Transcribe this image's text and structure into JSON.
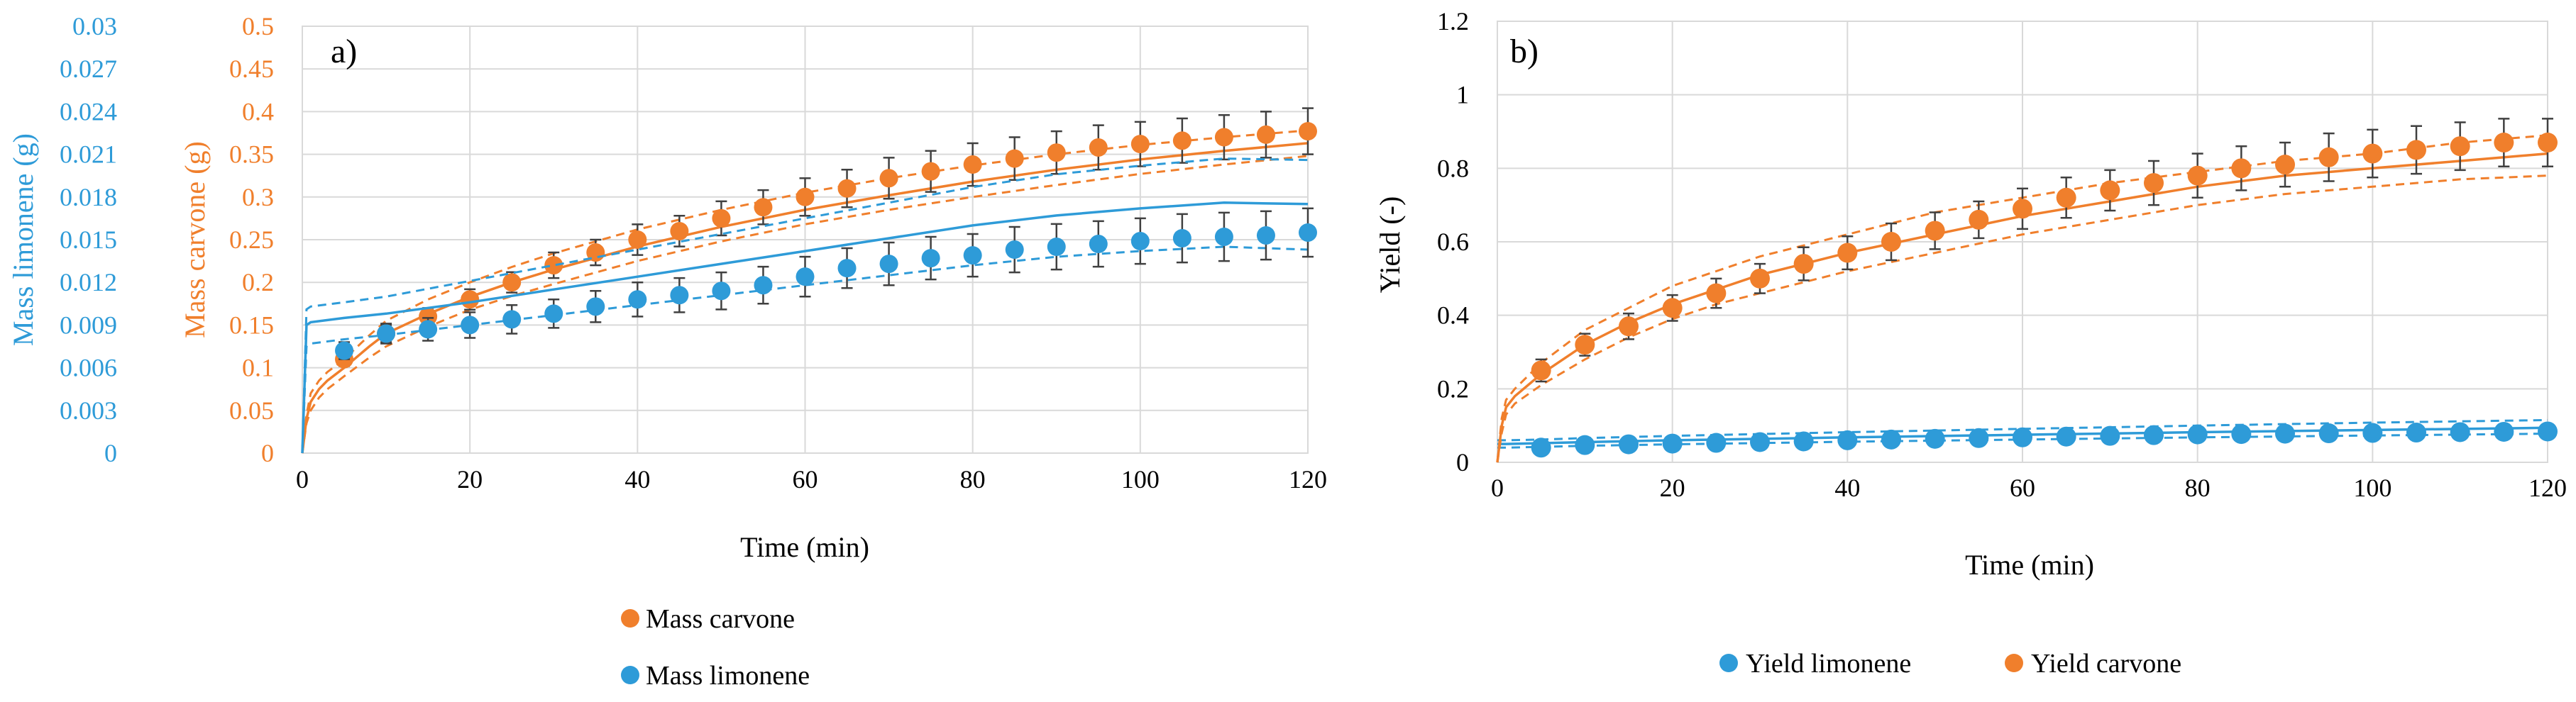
{
  "chart_data": [
    {
      "panel_label": "a)",
      "type": "scatter",
      "xlabel": "Time (min)",
      "xlim": [
        0,
        120
      ],
      "xticks": [
        "0",
        "20",
        "40",
        "60",
        "80",
        "100",
        "120"
      ],
      "grid": true,
      "legend_position": "bottom",
      "axes": {
        "carvone": {
          "label": "Mass carvone (g)",
          "ylim": [
            0,
            0.5
          ],
          "ticks": [
            "0",
            "0.05",
            "0.1",
            "0.15",
            "0.2",
            "0.25",
            "0.3",
            "0.35",
            "0.4",
            "0.45",
            "0.5"
          ],
          "color": "#F07F2C"
        },
        "limonene": {
          "label": "Mass limonene (g)",
          "ylim": [
            0,
            0.03
          ],
          "ticks": [
            "0",
            "0.003",
            "0.006",
            "0.009",
            "0.012",
            "0.015",
            "0.018",
            "0.021",
            "0.024",
            "0.027",
            "0.03"
          ],
          "color": "#2E9BD8"
        }
      },
      "series": [
        {
          "name": "Mass carvone",
          "axis": "carvone",
          "color": "#F07F2C",
          "x": [
            5,
            10,
            15,
            20,
            25,
            30,
            35,
            40,
            45,
            50,
            55,
            60,
            65,
            70,
            75,
            80,
            85,
            90,
            95,
            100,
            105,
            110,
            115,
            120
          ],
          "y": [
            0.11,
            0.14,
            0.16,
            0.18,
            0.2,
            0.22,
            0.235,
            0.25,
            0.26,
            0.275,
            0.288,
            0.3,
            0.31,
            0.322,
            0.33,
            0.338,
            0.345,
            0.352,
            0.358,
            0.362,
            0.366,
            0.37,
            0.373,
            0.377
          ],
          "err": [
            0.008,
            0.01,
            0.01,
            0.012,
            0.012,
            0.015,
            0.015,
            0.018,
            0.018,
            0.02,
            0.02,
            0.022,
            0.022,
            0.024,
            0.024,
            0.025,
            0.025,
            0.025,
            0.026,
            0.026,
            0.026,
            0.026,
            0.027,
            0.027
          ],
          "model_x": [
            0,
            0.5,
            1,
            2,
            3,
            5,
            8,
            10,
            15,
            20,
            25,
            30,
            40,
            50,
            60,
            70,
            80,
            90,
            100,
            110,
            120
          ],
          "model": [
            0,
            0.04,
            0.06,
            0.075,
            0.085,
            0.1,
            0.125,
            0.14,
            0.163,
            0.183,
            0.2,
            0.215,
            0.242,
            0.265,
            0.285,
            0.302,
            0.318,
            0.332,
            0.344,
            0.354,
            0.363
          ],
          "model_upper": [
            0,
            0.045,
            0.07,
            0.085,
            0.095,
            0.11,
            0.138,
            0.155,
            0.18,
            0.2,
            0.218,
            0.234,
            0.262,
            0.285,
            0.305,
            0.322,
            0.337,
            0.35,
            0.361,
            0.37,
            0.378
          ],
          "model_lower": [
            0,
            0.035,
            0.05,
            0.065,
            0.075,
            0.09,
            0.112,
            0.125,
            0.148,
            0.168,
            0.184,
            0.198,
            0.225,
            0.248,
            0.268,
            0.285,
            0.3,
            0.314,
            0.327,
            0.338,
            0.348
          ]
        },
        {
          "name": "Mass limonene",
          "axis": "limonene",
          "color": "#2E9BD8",
          "x": [
            5,
            10,
            15,
            20,
            25,
            30,
            35,
            40,
            45,
            50,
            55,
            60,
            65,
            70,
            75,
            80,
            85,
            90,
            95,
            100,
            105,
            110,
            115,
            120
          ],
          "y": [
            0.0072,
            0.0084,
            0.0087,
            0.009,
            0.0094,
            0.0098,
            0.0103,
            0.0108,
            0.0111,
            0.0114,
            0.0118,
            0.0124,
            0.013,
            0.0133,
            0.0137,
            0.0139,
            0.0143,
            0.0145,
            0.0147,
            0.0149,
            0.0151,
            0.0152,
            0.0153,
            0.0155
          ],
          "err": [
            0.0006,
            0.0007,
            0.0008,
            0.0009,
            0.001,
            0.001,
            0.0011,
            0.0012,
            0.0012,
            0.0013,
            0.0013,
            0.0014,
            0.0014,
            0.0015,
            0.0015,
            0.0015,
            0.0016,
            0.0016,
            0.0016,
            0.0016,
            0.0017,
            0.0017,
            0.0017,
            0.0017
          ],
          "model_x": [
            0,
            0.5,
            1,
            5,
            10,
            20,
            30,
            40,
            50,
            60,
            70,
            80,
            90,
            100,
            110,
            120
          ],
          "model": [
            0,
            0.009,
            0.0092,
            0.0095,
            0.0098,
            0.0106,
            0.0115,
            0.0124,
            0.0133,
            0.0142,
            0.0151,
            0.016,
            0.0167,
            0.0172,
            0.0176,
            0.0175
          ],
          "model_upper": [
            0,
            0.0101,
            0.0103,
            0.0106,
            0.011,
            0.0121,
            0.0132,
            0.0143,
            0.0154,
            0.0165,
            0.0176,
            0.0187,
            0.0196,
            0.0202,
            0.0207,
            0.0206
          ],
          "model_lower": [
            0,
            0.0075,
            0.0077,
            0.008,
            0.0083,
            0.009,
            0.0097,
            0.0104,
            0.0111,
            0.0118,
            0.0125,
            0.0132,
            0.0138,
            0.0142,
            0.0145,
            0.0143
          ]
        }
      ]
    },
    {
      "panel_label": "b)",
      "type": "scatter",
      "xlabel": "Time (min)",
      "ylabel": "Yield (-)",
      "xlim": [
        0,
        120
      ],
      "ylim": [
        0,
        1.2
      ],
      "xticks": [
        "0",
        "20",
        "40",
        "60",
        "80",
        "100",
        "120"
      ],
      "yticks": [
        "0",
        "0.2",
        "0.4",
        "0.6",
        "0.8",
        "1",
        "1.2"
      ],
      "grid": true,
      "legend_position": "bottom",
      "series": [
        {
          "name": "Yield limonene",
          "color": "#2E9BD8",
          "x": [
            5,
            10,
            15,
            20,
            25,
            30,
            35,
            40,
            45,
            50,
            55,
            60,
            65,
            70,
            75,
            80,
            85,
            90,
            95,
            100,
            105,
            110,
            115,
            120
          ],
          "y": [
            0.04,
            0.047,
            0.049,
            0.051,
            0.053,
            0.055,
            0.057,
            0.06,
            0.062,
            0.064,
            0.066,
            0.068,
            0.07,
            0.072,
            0.074,
            0.076,
            0.077,
            0.078,
            0.079,
            0.08,
            0.081,
            0.082,
            0.083,
            0.084
          ],
          "err": [
            0.005,
            0.005,
            0.005,
            0.005,
            0.006,
            0.006,
            0.006,
            0.006,
            0.006,
            0.007,
            0.007,
            0.007,
            0.007,
            0.007,
            0.008,
            0.008,
            0.008,
            0.008,
            0.008,
            0.008,
            0.008,
            0.008,
            0.008,
            0.008
          ],
          "model_x": [
            0,
            1,
            5,
            10,
            20,
            40,
            60,
            80,
            100,
            120
          ],
          "model": [
            0.05,
            0.05,
            0.052,
            0.055,
            0.06,
            0.068,
            0.075,
            0.082,
            0.088,
            0.094
          ],
          "model_upper": [
            0.06,
            0.06,
            0.062,
            0.066,
            0.072,
            0.082,
            0.091,
            0.1,
            0.108,
            0.115
          ],
          "model_lower": [
            0.04,
            0.04,
            0.042,
            0.045,
            0.049,
            0.056,
            0.062,
            0.068,
            0.073,
            0.078
          ]
        },
        {
          "name": "Yield carvone",
          "color": "#F07F2C",
          "x": [
            5,
            10,
            15,
            20,
            25,
            30,
            35,
            40,
            45,
            50,
            55,
            60,
            65,
            70,
            75,
            80,
            85,
            90,
            95,
            100,
            105,
            110,
            115,
            120
          ],
          "y": [
            0.25,
            0.32,
            0.37,
            0.42,
            0.46,
            0.5,
            0.54,
            0.57,
            0.6,
            0.63,
            0.66,
            0.69,
            0.72,
            0.74,
            0.76,
            0.78,
            0.8,
            0.81,
            0.83,
            0.84,
            0.85,
            0.86,
            0.87,
            0.87
          ],
          "err": [
            0.03,
            0.03,
            0.035,
            0.035,
            0.04,
            0.04,
            0.045,
            0.045,
            0.05,
            0.05,
            0.05,
            0.055,
            0.055,
            0.055,
            0.06,
            0.06,
            0.06,
            0.06,
            0.065,
            0.065,
            0.065,
            0.065,
            0.065,
            0.065
          ],
          "model_x": [
            0,
            0.5,
            1,
            2,
            5,
            10,
            15,
            20,
            25,
            30,
            40,
            50,
            60,
            70,
            80,
            90,
            100,
            110,
            120
          ],
          "model": [
            0,
            0.1,
            0.15,
            0.18,
            0.24,
            0.32,
            0.38,
            0.43,
            0.47,
            0.51,
            0.57,
            0.62,
            0.67,
            0.71,
            0.75,
            0.78,
            0.8,
            0.82,
            0.84
          ],
          "model_upper": [
            0,
            0.12,
            0.17,
            0.2,
            0.27,
            0.36,
            0.42,
            0.48,
            0.52,
            0.56,
            0.62,
            0.68,
            0.72,
            0.76,
            0.79,
            0.82,
            0.84,
            0.87,
            0.89
          ],
          "model_lower": [
            0,
            0.08,
            0.13,
            0.16,
            0.21,
            0.28,
            0.34,
            0.39,
            0.43,
            0.46,
            0.52,
            0.57,
            0.62,
            0.66,
            0.7,
            0.73,
            0.75,
            0.77,
            0.78
          ]
        }
      ]
    }
  ]
}
